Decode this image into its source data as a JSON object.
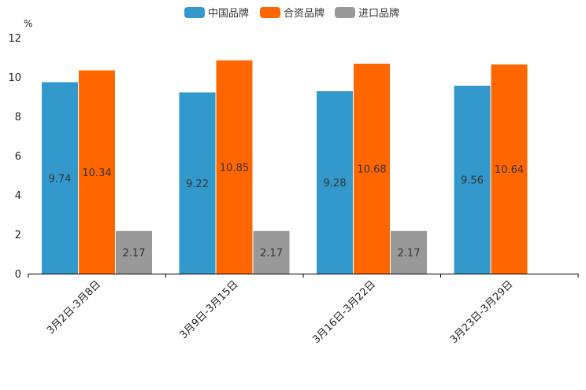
{
  "chart_data": {
    "type": "bar",
    "unit": "%",
    "categories": [
      "3月2日-3月8日",
      "3月9日-3月15日",
      "3月16日-3月22日",
      "3月23日-3月29日"
    ],
    "series": [
      {
        "name": "中国品牌",
        "color": "#3399cc",
        "values": [
          9.74,
          9.22,
          9.28,
          9.56
        ]
      },
      {
        "name": "合资品牌",
        "color": "#ff6600",
        "values": [
          10.34,
          10.85,
          10.68,
          10.64
        ]
      },
      {
        "name": "进口品牌",
        "color": "#999999",
        "values": [
          2.17,
          2.17,
          2.17,
          null
        ]
      }
    ],
    "ylim": [
      0,
      12
    ],
    "yticks": [
      0,
      2,
      4,
      6,
      8,
      10,
      12
    ],
    "legend_position": "top-center",
    "grid": false
  }
}
